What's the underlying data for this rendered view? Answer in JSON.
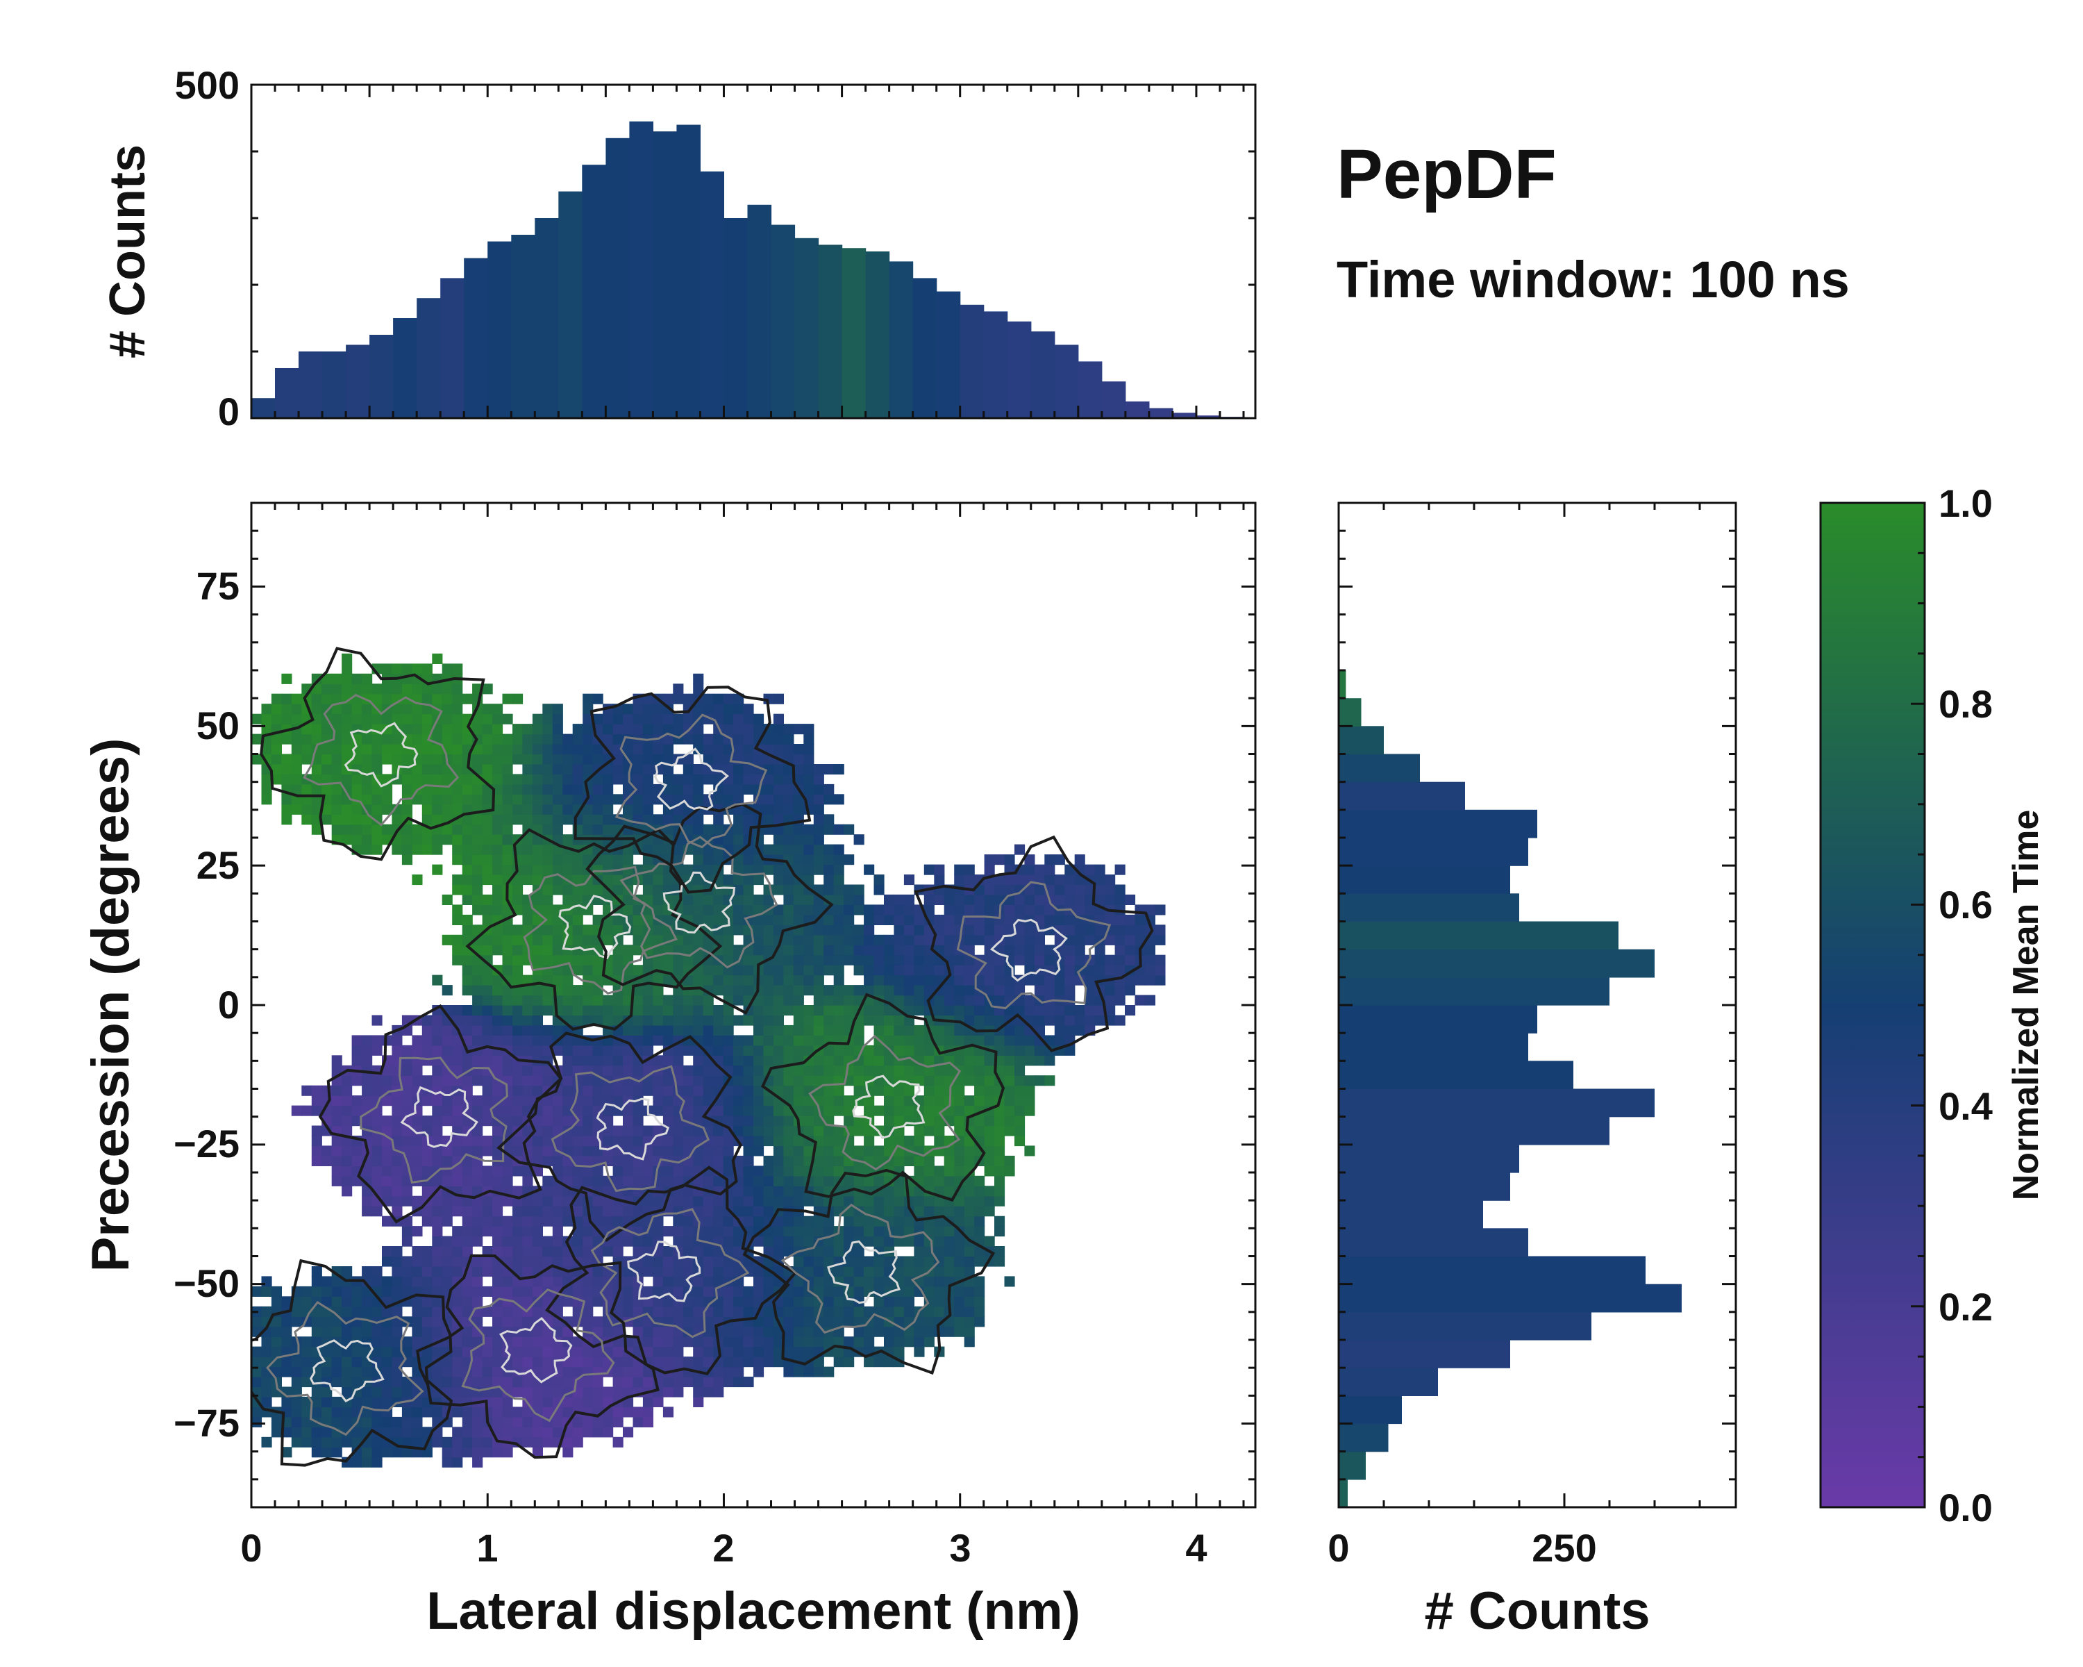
{
  "title": "PepDF",
  "subtitle": "Time window: 100 ns",
  "colors": {
    "low": "#6a3aa8",
    "mid": "#153f73",
    "high": "#2a8c2a",
    "frame": "#111111",
    "contour_dark": "#1c1c1c",
    "contour_grey": "#7a7a7a",
    "contour_light": "#d8d8d8"
  },
  "chart_data": [
    {
      "id": "top-histogram",
      "type": "bar",
      "title": "",
      "xlabel": "",
      "ylabel": "# Counts",
      "xlim": [
        0,
        4.25
      ],
      "ylim": [
        0,
        500
      ],
      "ytick_labels": [
        "0",
        "500"
      ],
      "x": [
        0.05,
        0.15,
        0.25,
        0.35,
        0.45,
        0.55,
        0.65,
        0.75,
        0.85,
        0.95,
        1.05,
        1.15,
        1.25,
        1.35,
        1.45,
        1.55,
        1.65,
        1.75,
        1.85,
        1.95,
        2.05,
        2.15,
        2.25,
        2.35,
        2.45,
        2.55,
        2.65,
        2.75,
        2.85,
        2.95,
        3.05,
        3.15,
        3.25,
        3.35,
        3.45,
        3.55,
        3.65,
        3.75,
        3.85,
        3.95,
        4.05,
        4.15
      ],
      "values": [
        30,
        75,
        100,
        100,
        110,
        125,
        150,
        180,
        210,
        240,
        265,
        275,
        300,
        340,
        380,
        420,
        445,
        430,
        440,
        370,
        300,
        320,
        290,
        270,
        260,
        255,
        250,
        235,
        210,
        190,
        170,
        160,
        145,
        130,
        110,
        85,
        55,
        25,
        15,
        8,
        4,
        2
      ],
      "normalized_mean_time": [
        0.45,
        0.42,
        0.42,
        0.45,
        0.42,
        0.45,
        0.48,
        0.45,
        0.42,
        0.48,
        0.5,
        0.52,
        0.52,
        0.55,
        0.5,
        0.5,
        0.48,
        0.5,
        0.5,
        0.48,
        0.5,
        0.52,
        0.55,
        0.58,
        0.62,
        0.7,
        0.62,
        0.55,
        0.5,
        0.48,
        0.42,
        0.4,
        0.38,
        0.4,
        0.38,
        0.36,
        0.35,
        0.33,
        0.33,
        0.32,
        0.3,
        0.3
      ]
    },
    {
      "id": "main-2d-histogram",
      "type": "heatmap",
      "title": "",
      "xlabel": "Lateral displacement (nm)",
      "ylabel": "Precession (degrees)",
      "xlim": [
        0,
        4.25
      ],
      "ylim": [
        -90,
        90
      ],
      "xtick_labels": [
        "0",
        "1",
        "2",
        "3",
        "4"
      ],
      "ytick_labels": [
        "−75",
        "−50",
        "−25",
        "0",
        "25",
        "50",
        "75"
      ],
      "clusters": [
        {
          "x": 1.45,
          "y": 14,
          "value": 0.95
        },
        {
          "x": 1.9,
          "y": 18,
          "value": 0.6
        },
        {
          "x": 2.7,
          "y": -18,
          "value": 0.9
        },
        {
          "x": 0.55,
          "y": 45,
          "value": 0.95
        },
        {
          "x": 1.85,
          "y": 40,
          "value": 0.45
        },
        {
          "x": 3.3,
          "y": 10,
          "value": 0.4
        },
        {
          "x": 0.8,
          "y": -20,
          "value": 0.2
        },
        {
          "x": 1.6,
          "y": -22,
          "value": 0.3
        },
        {
          "x": 1.75,
          "y": -48,
          "value": 0.35
        },
        {
          "x": 2.6,
          "y": -48,
          "value": 0.6
        },
        {
          "x": 0.4,
          "y": -65,
          "value": 0.55
        },
        {
          "x": 1.2,
          "y": -62,
          "value": 0.15
        }
      ]
    },
    {
      "id": "right-histogram",
      "type": "bar",
      "orientation": "horizontal",
      "title": "",
      "xlabel": "# Counts",
      "ylabel": "",
      "xlim": [
        0,
        440
      ],
      "ylim": [
        -90,
        90
      ],
      "xtick_labels": [
        "0",
        "250"
      ],
      "y": [
        -87.5,
        -82.5,
        -77.5,
        -72.5,
        -67.5,
        -62.5,
        -57.5,
        -52.5,
        -47.5,
        -42.5,
        -37.5,
        -32.5,
        -27.5,
        -22.5,
        -17.5,
        -12.5,
        -7.5,
        -2.5,
        2.5,
        7.5,
        12.5,
        17.5,
        22.5,
        27.5,
        32.5,
        37.5,
        42.5,
        47.5,
        52.5,
        57.5
      ],
      "values": [
        10,
        30,
        55,
        70,
        110,
        190,
        280,
        380,
        340,
        210,
        160,
        190,
        200,
        300,
        350,
        260,
        210,
        220,
        300,
        350,
        310,
        200,
        190,
        210,
        220,
        140,
        90,
        50,
        25,
        8
      ],
      "normalized_mean_time": [
        0.7,
        0.65,
        0.55,
        0.5,
        0.45,
        0.42,
        0.45,
        0.48,
        0.48,
        0.45,
        0.45,
        0.45,
        0.45,
        0.45,
        0.45,
        0.5,
        0.5,
        0.5,
        0.55,
        0.58,
        0.62,
        0.55,
        0.5,
        0.48,
        0.48,
        0.45,
        0.55,
        0.62,
        0.75,
        0.85
      ]
    }
  ],
  "colorbar": {
    "label": "Normalized Mean Time",
    "min": 0,
    "max": 1,
    "tick_labels": [
      "0.0",
      "0.2",
      "0.4",
      "0.6",
      "0.8",
      "1.0"
    ]
  }
}
